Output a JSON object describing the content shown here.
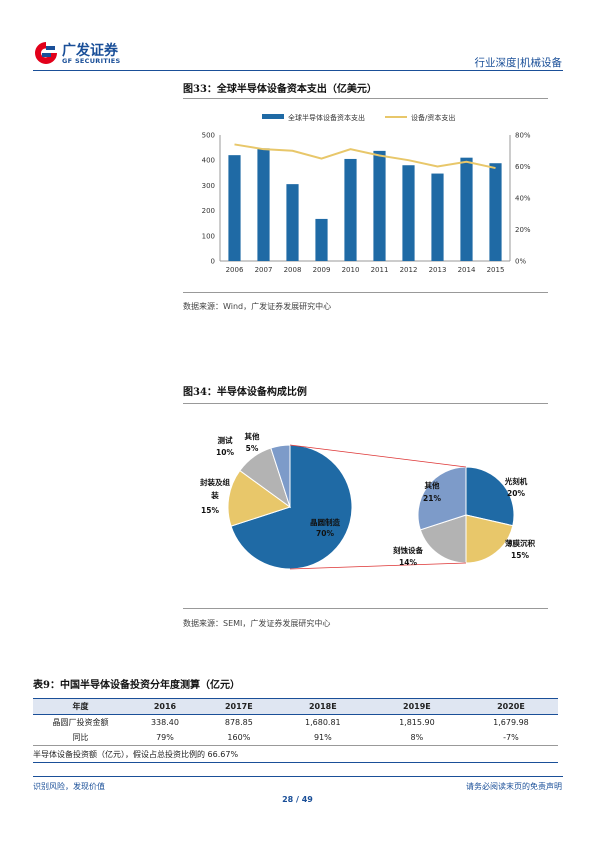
{
  "header": {
    "brand_cn": "广发证券",
    "brand_en": "GF SECURITIES",
    "category": "行业深度|机械设备",
    "brand_color": "#1a4f98"
  },
  "figure33": {
    "title": "图33：全球半导体设备资本支出（亿美元）",
    "source": "数据来源：Wind，广发证券发展研究中心",
    "chart_data": {
      "type": "bar",
      "categories": [
        "2006",
        "2007",
        "2008",
        "2009",
        "2010",
        "2011",
        "2012",
        "2013",
        "2014",
        "2015"
      ],
      "series": [
        {
          "name": "全球半导体设备资本支出",
          "type": "bar",
          "axis": "left",
          "color": "#1f6aa5",
          "values": [
            420,
            447,
            305,
            167,
            405,
            437,
            380,
            347,
            410,
            388
          ]
        },
        {
          "name": "设备/资本支出",
          "type": "line",
          "axis": "right",
          "color": "#e8c76a",
          "values": [
            0.74,
            0.71,
            0.7,
            0.65,
            0.71,
            0.67,
            0.64,
            0.6,
            0.63,
            0.59
          ]
        }
      ],
      "y_left": {
        "min": 0,
        "max": 500,
        "ticks": [
          "0",
          "100",
          "200",
          "300",
          "400",
          "500"
        ]
      },
      "y_right": {
        "min": 0,
        "max": 0.8,
        "ticks": [
          "0%",
          "20%",
          "40%",
          "60%",
          "80%"
        ]
      },
      "legend_position": "top-center",
      "grid": false
    }
  },
  "figure34": {
    "title": "图34：半导体设备构成比例",
    "source": "数据来源：SEMI，广发证券发展研究中心",
    "chart_data": {
      "type": "pie",
      "main_pie": {
        "slices": [
          {
            "label": "晶圆制造",
            "percent": "70%",
            "value": 70,
            "color": "#1f6aa5"
          },
          {
            "label": "封装及组装",
            "label_line1": "封装及组",
            "label_line2": "装",
            "percent": "15%",
            "value": 15,
            "color": "#e8c76a"
          },
          {
            "label": "测试",
            "percent": "10%",
            "value": 10,
            "color": "#b3b3b3"
          },
          {
            "label": "其他",
            "percent": "5%",
            "value": 5,
            "color": "#7d9bc9"
          }
        ]
      },
      "sub_pie": {
        "slices": [
          {
            "label": "光刻机",
            "percent": "20%",
            "value": 20,
            "color": "#1f6aa5"
          },
          {
            "label": "薄膜沉积",
            "percent": "15%",
            "value": 15,
            "color": "#e8c76a"
          },
          {
            "label": "刻蚀设备",
            "percent": "14%",
            "value": 14,
            "color": "#b3b3b3"
          },
          {
            "label": "其他",
            "percent": "21%",
            "value": 21,
            "color": "#7d9bc9"
          }
        ]
      }
    }
  },
  "table9": {
    "title": "表9：中国半导体设备投资分年度测算（亿元）",
    "header": [
      "年度",
      "2016",
      "2017E",
      "2018E",
      "2019E",
      "2020E"
    ],
    "rows": [
      [
        "晶圆厂投资金额",
        "338.40",
        "878.85",
        "1,680.81",
        "1,815.90",
        "1,679.98"
      ],
      [
        "同比",
        "79%",
        "160%",
        "91%",
        "8%",
        "-7%"
      ]
    ],
    "note": "半导体设备投资额（亿元），假设占总投资比例的 66.67%"
  },
  "footer": {
    "left": "识别风险，发现价值",
    "right": "请务必阅读末页的免责声明",
    "page": "28 / 49"
  }
}
